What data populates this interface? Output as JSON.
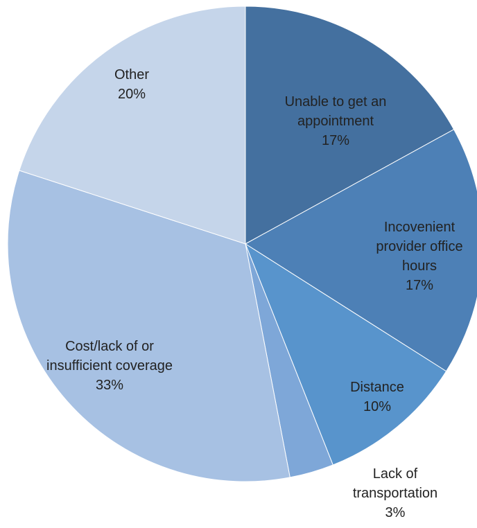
{
  "chart_data": {
    "type": "pie",
    "categories": [
      "Unable to get an appointment",
      "Incovenient provider office hours",
      "Distance",
      "Lack of transportation",
      "Cost/lack of or insufficient coverage",
      "Other"
    ],
    "values": [
      17,
      17,
      10,
      3,
      33,
      20
    ],
    "value_labels": [
      "17%",
      "17%",
      "10%",
      "3%",
      "33%",
      "20%"
    ],
    "colors": [
      "#44709f",
      "#4d80b6",
      "#5894cc",
      "#7ea7d8",
      "#a7c1e3",
      "#c5d5ea"
    ]
  }
}
